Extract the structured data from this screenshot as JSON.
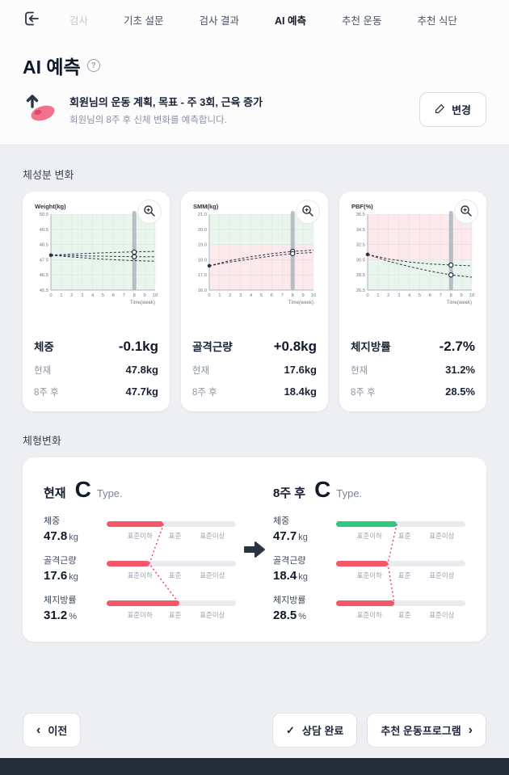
{
  "nav": {
    "items": [
      {
        "label": "검사"
      },
      {
        "label": "기초 설문"
      },
      {
        "label": "검사 결과"
      },
      {
        "label": "AI 예측"
      },
      {
        "label": "추천 운동"
      },
      {
        "label": "추천 식단"
      }
    ]
  },
  "page": {
    "title": "AI 예측",
    "help": "?"
  },
  "plan": {
    "title": "회원님의 운동 계획, 목표 - 주 3회, 근육 증가",
    "subtitle": "회원님의 8주 후 신체 변화를 예측합니다.",
    "change_label": "변경"
  },
  "sections": {
    "composition": "체성분 변화",
    "shape": "체형변화"
  },
  "metric_cards": [
    {
      "name": "체중",
      "delta": "-0.1kg",
      "current_label": "현재",
      "current": "47.8kg",
      "future_label": "8주 후",
      "future": "47.7kg"
    },
    {
      "name": "골격근량",
      "delta": "+0.8kg",
      "current_label": "현재",
      "current": "17.6kg",
      "future_label": "8주 후",
      "future": "18.4kg"
    },
    {
      "name": "체지방률",
      "delta": "-2.7%",
      "current_label": "현재",
      "current": "31.2%",
      "future_label": "8주 후",
      "future": "28.5%"
    }
  ],
  "chart_data": [
    {
      "type": "line",
      "title": "Weight(kg)",
      "xlabel": "Time(week)",
      "x_ticks": [
        0,
        1,
        2,
        3,
        4,
        5,
        6,
        7,
        8,
        9,
        10
      ],
      "ylim": [
        45.5,
        50.5
      ],
      "y_ticks": [
        45.5,
        46.5,
        47.5,
        48.5,
        49.5,
        50.5
      ],
      "bands": [
        {
          "from": 45.5,
          "to": 50.5,
          "color": "#e9f5ec"
        }
      ],
      "highlight_x": 8,
      "series": [
        {
          "name": "upper",
          "dash": true,
          "x": [
            0,
            2,
            4,
            6,
            8,
            10
          ],
          "y": [
            47.8,
            47.87,
            47.93,
            47.98,
            48.02,
            48.05
          ]
        },
        {
          "name": "median",
          "dash": true,
          "x": [
            0,
            2,
            4,
            6,
            8,
            10
          ],
          "y": [
            47.8,
            47.77,
            47.74,
            47.72,
            47.7,
            47.69
          ]
        },
        {
          "name": "lower",
          "dash": true,
          "x": [
            0,
            2,
            4,
            6,
            8,
            10
          ],
          "y": [
            47.8,
            47.68,
            47.58,
            47.5,
            47.44,
            47.4
          ]
        }
      ],
      "markers": [
        {
          "x": 0,
          "y": 47.8,
          "filled": true
        },
        {
          "x": 8,
          "y": 48.0
        },
        {
          "x": 8,
          "y": 47.7
        }
      ]
    },
    {
      "type": "line",
      "title": "SMM(kg)",
      "xlabel": "Time(week)",
      "x_ticks": [
        0,
        1,
        2,
        3,
        4,
        5,
        6,
        7,
        8,
        9,
        10
      ],
      "ylim": [
        16.0,
        21.0
      ],
      "y_ticks": [
        16.0,
        17.0,
        18.0,
        19.0,
        20.0,
        21.0
      ],
      "bands": [
        {
          "from": 16.0,
          "to": 19.0,
          "color": "#fbe9ec"
        },
        {
          "from": 19.0,
          "to": 21.0,
          "color": "#e9f5ec"
        }
      ],
      "highlight_x": 8,
      "series": [
        {
          "name": "upper",
          "dash": true,
          "x": [
            0,
            2,
            4,
            6,
            8,
            10
          ],
          "y": [
            17.6,
            17.95,
            18.2,
            18.4,
            18.55,
            18.63
          ]
        },
        {
          "name": "median",
          "dash": true,
          "x": [
            0,
            2,
            4,
            6,
            8,
            10
          ],
          "y": [
            17.6,
            17.85,
            18.05,
            18.25,
            18.4,
            18.48
          ]
        }
      ],
      "markers": [
        {
          "x": 0,
          "y": 17.6,
          "filled": true
        },
        {
          "x": 8,
          "y": 18.55
        },
        {
          "x": 8,
          "y": 18.4
        }
      ]
    },
    {
      "type": "line",
      "title": "PBF(%)",
      "xlabel": "Time(week)",
      "x_ticks": [
        0,
        1,
        2,
        3,
        4,
        5,
        6,
        7,
        8,
        9,
        10
      ],
      "ylim": [
        26.5,
        36.5
      ],
      "y_ticks": [
        26.5,
        28.5,
        30.5,
        32.5,
        34.5,
        36.5
      ],
      "bands": [
        {
          "from": 30.5,
          "to": 36.5,
          "color": "#fbe9ec"
        },
        {
          "from": 26.5,
          "to": 30.5,
          "color": "#e9f5ec"
        }
      ],
      "highlight_x": 8,
      "series": [
        {
          "name": "upper",
          "dash": true,
          "x": [
            0,
            2,
            4,
            6,
            8,
            10
          ],
          "y": [
            31.2,
            30.6,
            30.2,
            29.95,
            29.8,
            29.7
          ]
        },
        {
          "name": "lower",
          "dash": true,
          "x": [
            0,
            2,
            4,
            6,
            8,
            10
          ],
          "y": [
            31.2,
            30.3,
            29.6,
            29.0,
            28.5,
            28.2
          ]
        }
      ],
      "markers": [
        {
          "x": 0,
          "y": 31.2,
          "filled": true
        },
        {
          "x": 8,
          "y": 29.8
        },
        {
          "x": 8,
          "y": 28.5
        }
      ]
    }
  ],
  "body_shape": {
    "scale_labels": [
      "표준이하",
      "표준",
      "표준이상"
    ],
    "current": {
      "title": "현재",
      "type_letter": "C",
      "type_suffix": "Type.",
      "rows": [
        {
          "label": "체중",
          "value": "47.8",
          "unit": "kg",
          "fill": 0.44,
          "color": "#F4566A"
        },
        {
          "label": "골격근량",
          "value": "17.6",
          "unit": "kg",
          "fill": 0.33,
          "color": "#F4566A"
        },
        {
          "label": "체지방률",
          "value": "31.2",
          "unit": "%",
          "fill": 0.56,
          "color": "#F4566A"
        }
      ]
    },
    "future": {
      "title": "8주 후",
      "type_letter": "C",
      "type_suffix": "Type.",
      "rows": [
        {
          "label": "체중",
          "value": "47.7",
          "unit": "kg",
          "fill": 0.47,
          "color": "#2EC97E"
        },
        {
          "label": "골격근량",
          "value": "18.4",
          "unit": "kg",
          "fill": 0.4,
          "color": "#F4566A"
        },
        {
          "label": "체지방률",
          "value": "28.5",
          "unit": "%",
          "fill": 0.45,
          "color": "#F4566A"
        }
      ]
    }
  },
  "footer": {
    "prev": "이전",
    "consult": "상담 완료",
    "recommend": "추천 운동프로그램"
  },
  "colors": {
    "accent_red": "#F4566A",
    "accent_green": "#2EC97E",
    "navy": "#1C2536",
    "band_green": "#e9f5ec",
    "band_pink": "#fbe9ec",
    "taskbar": "#252D3B"
  }
}
